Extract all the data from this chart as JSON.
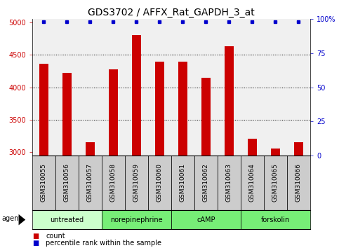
{
  "title": "GDS3702 / AFFX_Rat_GAPDH_3_at",
  "samples": [
    "GSM310055",
    "GSM310056",
    "GSM310057",
    "GSM310058",
    "GSM310059",
    "GSM310060",
    "GSM310061",
    "GSM310062",
    "GSM310063",
    "GSM310064",
    "GSM310065",
    "GSM310066"
  ],
  "counts": [
    4360,
    4220,
    3150,
    4280,
    4810,
    4400,
    4390,
    4150,
    4630,
    3210,
    3060,
    3150
  ],
  "bar_color": "#cc0000",
  "dot_color": "#0000cc",
  "ylim_left": [
    2950,
    5050
  ],
  "yticks_left": [
    3000,
    3500,
    4000,
    4500,
    5000
  ],
  "yticks_right": [
    0,
    25,
    50,
    75,
    100
  ],
  "ytick_labels_right": [
    "0",
    "25",
    "50",
    "75",
    "100%"
  ],
  "groups": [
    {
      "label": "untreated",
      "start": 0,
      "end": 3,
      "color": "#ccffcc"
    },
    {
      "label": "norepinephrine",
      "start": 3,
      "end": 6,
      "color": "#77ee77"
    },
    {
      "label": "cAMP",
      "start": 6,
      "end": 9,
      "color": "#77ee77"
    },
    {
      "label": "forskolin",
      "start": 9,
      "end": 12,
      "color": "#77ee77"
    }
  ],
  "legend_count_label": "count",
  "legend_pct_label": "percentile rank within the sample",
  "title_fontsize": 10,
  "tick_fontsize": 7,
  "sample_fontsize": 6.5,
  "label_fontsize": 8,
  "background_plot": "#f0f0f0",
  "background_sample": "#cccccc",
  "bar_width": 0.4
}
